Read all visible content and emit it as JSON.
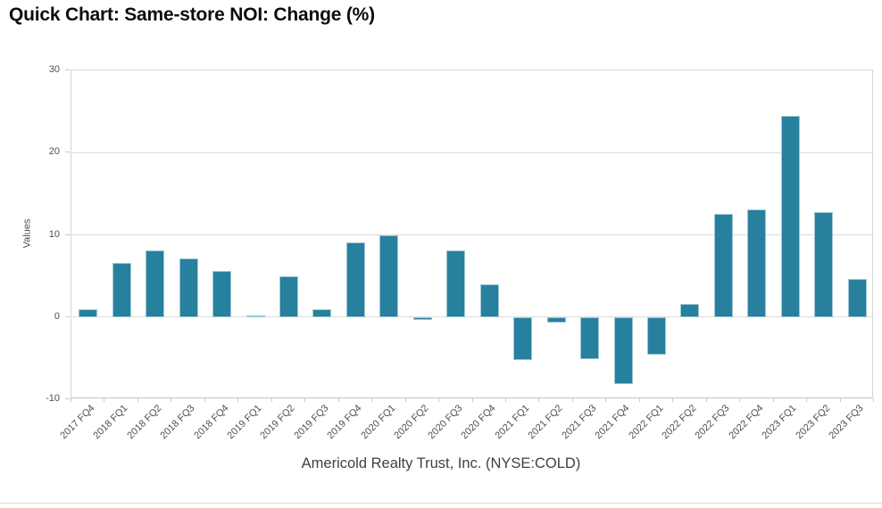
{
  "title": "Quick Chart: Same-store NOI: Change (%)",
  "footer": "Americold Realty Trust, Inc. (NYSE:COLD)",
  "chart_data": {
    "type": "bar",
    "title": "Quick Chart: Same-store NOI: Change (%)",
    "categories": [
      "2017 FQ4",
      "2018 FQ1",
      "2018 FQ2",
      "2018 FQ3",
      "2018 FQ4",
      "2019 FQ1",
      "2019 FQ2",
      "2019 FQ3",
      "2019 FQ4",
      "2020 FQ1",
      "2020 FQ2",
      "2020 FQ3",
      "2020 FQ4",
      "2021 FQ1",
      "2021 FQ2",
      "2021 FQ3",
      "2021 FQ4",
      "2022 FQ1",
      "2022 FQ2",
      "2022 FQ3",
      "2022 FQ4",
      "2023 FQ1",
      "2023 FQ2",
      "2023 FQ3"
    ],
    "values": [
      1.0,
      6.6,
      8.1,
      7.1,
      5.6,
      0.2,
      5.0,
      1.0,
      9.1,
      9.9,
      -0.4,
      8.1,
      4.0,
      -5.2,
      -0.7,
      -5.1,
      -8.2,
      -4.6,
      1.6,
      12.5,
      13.1,
      24.5,
      12.8,
      4.6
    ],
    "xlabel": "Americold Realty Trust, Inc. (NYSE:COLD)",
    "ylabel": "Values",
    "ylim": [
      -10,
      30
    ],
    "yticks": [
      30,
      20,
      10,
      0,
      -10
    ],
    "grid": true,
    "legend_position": "none",
    "bar_color": "#26809E",
    "bar_edge_color": "#9fc8d4",
    "grid_color": "#dcdcdc"
  }
}
